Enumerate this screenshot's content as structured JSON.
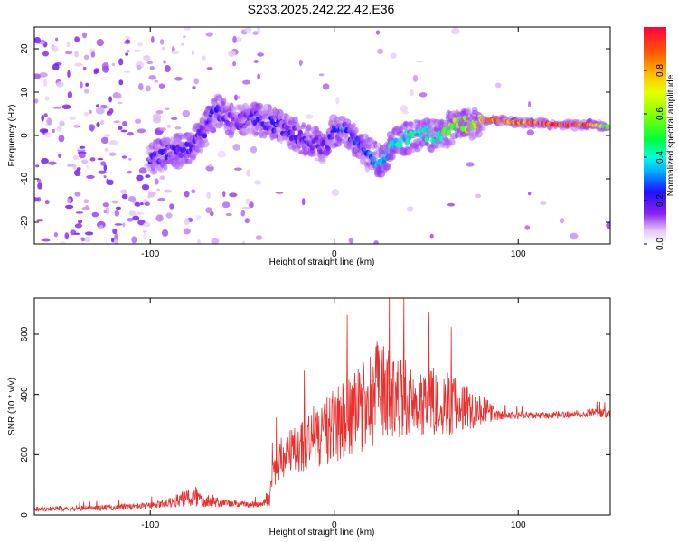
{
  "title": "S233.2025.242.22.42.E36",
  "chart_data": [
    {
      "type": "heatmap",
      "xlabel": "Height of straight line (km)",
      "ylabel": "Frequency (Hz)",
      "xlim": [
        -163,
        150
      ],
      "ylim": [
        -25,
        25
      ],
      "xticks": [
        -100,
        0,
        100
      ],
      "yticks": [
        -20,
        -10,
        0,
        10,
        20
      ],
      "colorbar": {
        "label": "Normalized spectral amplitude",
        "range": [
          0,
          1
        ],
        "ticks": [
          "0.0",
          "0.2",
          "0.4",
          "0.6",
          "0.8"
        ],
        "colormap": "rainbow (white-violet-blue-cyan-green-yellow-red)"
      },
      "ridge": {
        "description": "dominant frequency vs height",
        "x": [
          -100,
          -90,
          -80,
          -72,
          -65,
          -55,
          -45,
          -35,
          -25,
          -15,
          -5,
          0,
          5,
          15,
          25,
          35,
          45,
          55,
          65,
          75,
          80,
          90,
          100,
          110,
          120,
          130,
          140,
          148
        ],
        "y": [
          -5,
          -4,
          -3,
          0,
          6,
          3,
          4,
          3,
          1,
          -1,
          -3,
          1,
          2,
          -3,
          -6,
          -1,
          0,
          0,
          2,
          3,
          3.5,
          3.5,
          3,
          3,
          2.5,
          2.5,
          2.5,
          2
        ],
        "amplitude": [
          0.2,
          0.2,
          0.2,
          0.18,
          0.22,
          0.15,
          0.2,
          0.22,
          0.2,
          0.18,
          0.18,
          0.22,
          0.28,
          0.25,
          0.35,
          0.4,
          0.42,
          0.45,
          0.55,
          0.62,
          0.75,
          0.82,
          0.85,
          0.88,
          0.95,
          0.97,
          0.85,
          0.5
        ]
      }
    },
    {
      "type": "line",
      "xlabel": "Height of straight line (km)",
      "ylabel": "SNR (10 * v/v)",
      "xlim": [
        -163,
        150
      ],
      "ylim": [
        0,
        720
      ],
      "xticks": [
        -100,
        0,
        100
      ],
      "yticks": [
        0,
        200,
        400,
        600
      ],
      "series": [
        {
          "color": "#e8302e",
          "x": [
            -163,
            -140,
            -120,
            -100,
            -90,
            -80,
            -75,
            -70,
            -60,
            -50,
            -40,
            -35,
            -33,
            -30,
            -20,
            -10,
            0,
            10,
            20,
            25,
            30,
            40,
            50,
            60,
            70,
            80,
            90,
            100,
            110,
            120,
            130,
            140,
            150
          ],
          "y": [
            20,
            22,
            25,
            30,
            40,
            55,
            60,
            50,
            40,
            35,
            35,
            60,
            140,
            180,
            220,
            260,
            300,
            330,
            380,
            420,
            400,
            390,
            380,
            370,
            360,
            350,
            330,
            330,
            330,
            330,
            335,
            340,
            335
          ],
          "spread": [
            8,
            8,
            10,
            12,
            15,
            30,
            40,
            25,
            15,
            10,
            10,
            30,
            60,
            70,
            90,
            110,
            130,
            140,
            160,
            180,
            150,
            130,
            120,
            110,
            90,
            50,
            15,
            12,
            12,
            12,
            12,
            15,
            15
          ]
        }
      ]
    }
  ]
}
